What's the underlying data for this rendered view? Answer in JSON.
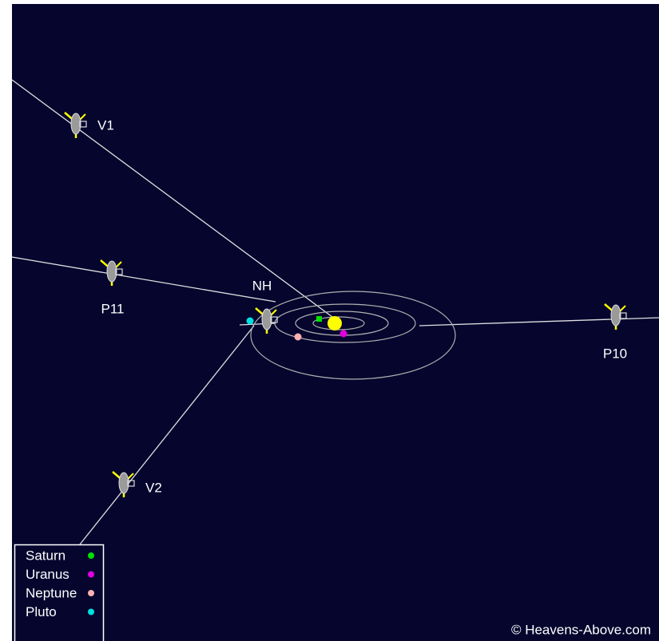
{
  "spacecraft": [
    {
      "label": "V1"
    },
    {
      "label": "P11"
    },
    {
      "label": "NH"
    },
    {
      "label": "V2"
    },
    {
      "label": "P10"
    }
  ],
  "legend": [
    {
      "label": "Saturn",
      "color": "#00e000"
    },
    {
      "label": "Uranus",
      "color": "#e000e0"
    },
    {
      "label": "Neptune",
      "color": "#ffb0b0"
    },
    {
      "label": "Pluto",
      "color": "#00e0e0"
    }
  ],
  "credit": "© Heavens-Above.com"
}
